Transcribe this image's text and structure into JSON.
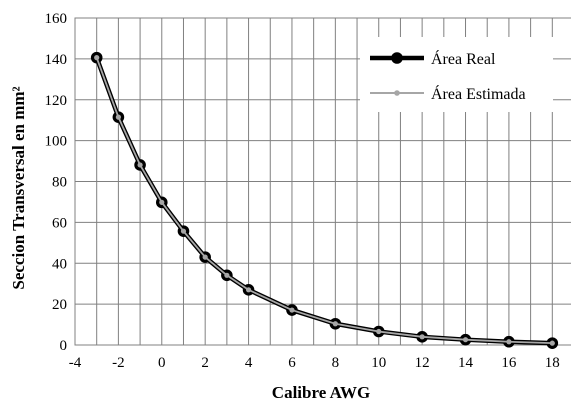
{
  "chart_data": {
    "type": "line",
    "xlabel": "Calibre AWG",
    "ylabel": "Seccion Transversal en mm²",
    "xlim": [
      -4,
      19
    ],
    "ylim": [
      0,
      160
    ],
    "x_ticks": [
      -4,
      -2,
      0,
      2,
      4,
      6,
      8,
      10,
      12,
      14,
      16,
      18
    ],
    "y_ticks": [
      0,
      20,
      40,
      60,
      80,
      100,
      120,
      140,
      160
    ],
    "grid": "vertical lines at every 1 unit, horizontal lines at every 20",
    "legend_position": "top-right",
    "series": [
      {
        "name": "Área Real",
        "color": "#000000",
        "style": "thick line with large circular markers",
        "x": [
          -3,
          -2,
          -1,
          0,
          1,
          2,
          3,
          4,
          6,
          8,
          10,
          12,
          14,
          16,
          18
        ],
        "y": [
          140.6,
          111.5,
          88.1,
          69.8,
          55.7,
          43.0,
          34.1,
          27.0,
          17.1,
          10.4,
          6.6,
          4.0,
          2.6,
          1.6,
          0.9
        ]
      },
      {
        "name": "Área Estimada",
        "color": "#a6a6a6",
        "style": "thin line with small circular markers",
        "x": [
          -3,
          -2,
          -1,
          0,
          1,
          2,
          3,
          4,
          6,
          8,
          10,
          12,
          14,
          16,
          18
        ],
        "y": [
          140.6,
          111.5,
          88.1,
          69.8,
          55.7,
          43.0,
          34.1,
          27.0,
          17.1,
          10.4,
          6.6,
          4.0,
          2.6,
          1.6,
          0.9
        ]
      }
    ]
  }
}
